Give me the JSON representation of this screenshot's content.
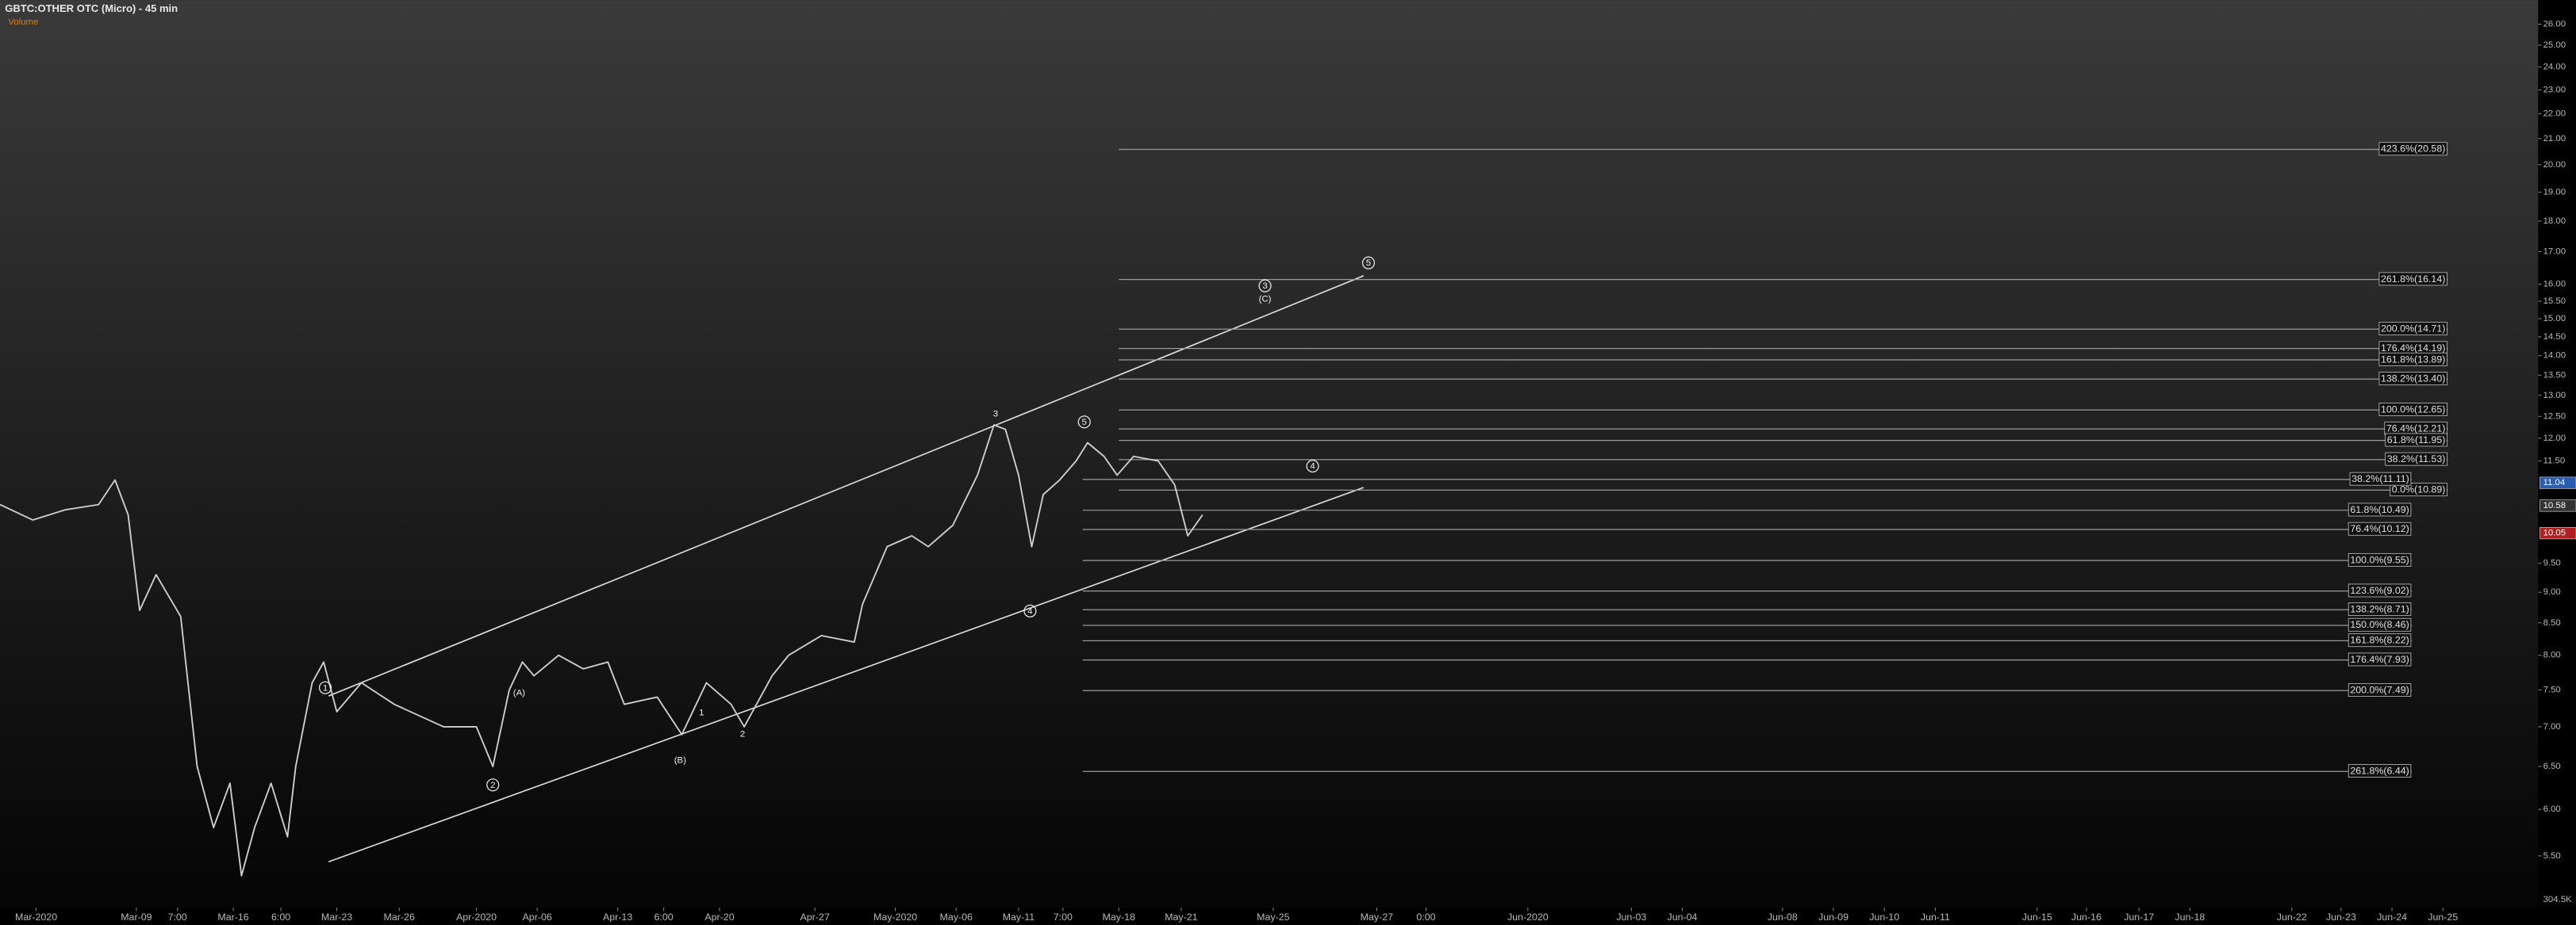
{
  "chart_data": {
    "type": "line",
    "title": "GBTC:OTHER OTC (Micro) - 45 min",
    "subtitle": "Volume",
    "volume_label": "304.5K",
    "log_scale": true,
    "xlim": [
      0,
      1545
    ],
    "ylim": [
      5.07,
      27.2
    ],
    "xticks": [
      {
        "value": 22,
        "label": "Mar-2020"
      },
      {
        "value": 83,
        "label": "Mar-09"
      },
      {
        "value": 108,
        "label": "7:00"
      },
      {
        "value": 142,
        "label": "Mar-16"
      },
      {
        "value": 171,
        "label": "6:00"
      },
      {
        "value": 205,
        "label": "Mar-23"
      },
      {
        "value": 243,
        "label": "Mar-26"
      },
      {
        "value": 290,
        "label": "Apr-2020"
      },
      {
        "value": 327,
        "label": "Apr-06"
      },
      {
        "value": 376,
        "label": "Apr-13"
      },
      {
        "value": 404,
        "label": "6:00"
      },
      {
        "value": 438,
        "label": "Apr-20"
      },
      {
        "value": 496,
        "label": "Apr-27"
      },
      {
        "value": 545,
        "label": "May-2020"
      },
      {
        "value": 582,
        "label": "May-06"
      },
      {
        "value": 620,
        "label": "May-11"
      },
      {
        "value": 647,
        "label": "7:00"
      },
      {
        "value": 681,
        "label": "May-18"
      },
      {
        "value": 719,
        "label": "May-21"
      },
      {
        "value": 775,
        "label": "May-25"
      },
      {
        "value": 838,
        "label": "May-27"
      },
      {
        "value": 868,
        "label": "0:00"
      },
      {
        "value": 930,
        "label": "Jun-2020"
      },
      {
        "value": 993,
        "label": "Jun-03"
      },
      {
        "value": 1024,
        "label": "Jun-04"
      },
      {
        "value": 1085,
        "label": "Jun-08"
      },
      {
        "value": 1116,
        "label": "Jun-09"
      },
      {
        "value": 1147,
        "label": "Jun-10"
      },
      {
        "value": 1178,
        "label": "Jun-11"
      },
      {
        "value": 1240,
        "label": "Jun-15"
      },
      {
        "value": 1270,
        "label": "Jun-16"
      },
      {
        "value": 1302,
        "label": "Jun-17"
      },
      {
        "value": 1333,
        "label": "Jun-18"
      },
      {
        "value": 1395,
        "label": "Jun-22"
      },
      {
        "value": 1425,
        "label": "Jun-23"
      },
      {
        "value": 1456,
        "label": "Jun-24"
      },
      {
        "value": 1487,
        "label": "Jun-25"
      }
    ],
    "yticks": [
      {
        "value": 26,
        "label": "26.00"
      },
      {
        "value": 25,
        "label": "25.00"
      },
      {
        "value": 24,
        "label": "24.00"
      },
      {
        "value": 23,
        "label": "23.00"
      },
      {
        "value": 22,
        "label": "22.00"
      },
      {
        "value": 21,
        "label": "21.00"
      },
      {
        "value": 20,
        "label": "20.00"
      },
      {
        "value": 19,
        "label": "19.00"
      },
      {
        "value": 18,
        "label": "18.00"
      },
      {
        "value": 17,
        "label": "17.00"
      },
      {
        "value": 16,
        "label": "16.00"
      },
      {
        "value": 15.5,
        "label": "15.50"
      },
      {
        "value": 15,
        "label": "15.00"
      },
      {
        "value": 14.5,
        "label": "14.50"
      },
      {
        "value": 14,
        "label": "14.00"
      },
      {
        "value": 13.5,
        "label": "13.50"
      },
      {
        "value": 13,
        "label": "13.00"
      },
      {
        "value": 12.5,
        "label": "12.50"
      },
      {
        "value": 12,
        "label": "12.00"
      },
      {
        "value": 11.5,
        "label": "11.50"
      },
      {
        "value": 9.5,
        "label": "9.50"
      },
      {
        "value": 9,
        "label": "9.00"
      },
      {
        "value": 8.5,
        "label": "8.50"
      },
      {
        "value": 8,
        "label": "8.00"
      },
      {
        "value": 7.5,
        "label": "7.50"
      },
      {
        "value": 7,
        "label": "7.00"
      },
      {
        "value": 6.5,
        "label": "6.50"
      },
      {
        "value": 6,
        "label": "6.00"
      },
      {
        "value": 5.5,
        "label": "5.50"
      }
    ],
    "series": [
      {
        "name": "GBTC",
        "color": "#cfcfcf",
        "x": [
          0,
          20,
          40,
          60,
          70,
          78,
          85,
          95,
          110,
          120,
          130,
          140,
          147,
          155,
          165,
          175,
          180,
          190,
          197,
          205,
          220,
          240,
          270,
          290,
          300,
          310,
          318,
          325,
          340,
          355,
          370,
          380,
          400,
          415,
          430,
          445,
          453,
          470,
          480,
          500,
          520,
          525,
          540,
          555,
          565,
          580,
          595,
          605,
          612,
          620,
          628,
          635,
          645,
          655,
          662,
          672,
          680,
          690,
          705,
          715,
          723,
          732
        ],
        "values": [
          10.6,
          10.3,
          10.5,
          10.6,
          11.1,
          10.4,
          8.7,
          9.3,
          8.6,
          6.5,
          5.8,
          6.3,
          5.3,
          5.8,
          6.3,
          5.7,
          6.5,
          7.6,
          7.9,
          7.2,
          7.6,
          7.3,
          7.0,
          7.0,
          6.5,
          7.5,
          7.9,
          7.7,
          8.0,
          7.8,
          7.9,
          7.3,
          7.4,
          6.9,
          7.6,
          7.3,
          7.0,
          7.7,
          8.0,
          8.3,
          8.2,
          8.8,
          9.8,
          10.0,
          9.8,
          10.2,
          11.2,
          12.3,
          12.2,
          11.2,
          9.8,
          10.8,
          11.1,
          11.5,
          11.9,
          11.6,
          11.2,
          11.6,
          11.5,
          11.0,
          10.0,
          10.4
        ]
      }
    ],
    "price_markers": [
      {
        "value": 11.04,
        "color": "#2a5db0"
      },
      {
        "value": 10.58,
        "color": "#333333"
      },
      {
        "value": 10.05,
        "color": "#b02020"
      }
    ],
    "fib_levels": [
      {
        "label": "423.6%(20.58)",
        "value": 20.58,
        "from": 681,
        "to": 1490
      },
      {
        "label": "261.8%(16.14)",
        "value": 16.14,
        "from": 681,
        "to": 1490
      },
      {
        "label": "200.0%(14.71)",
        "value": 14.71,
        "from": 681,
        "to": 1490
      },
      {
        "label": "176.4%(14.19)",
        "value": 14.19,
        "from": 681,
        "to": 1490
      },
      {
        "label": "161.8%(13.89)",
        "value": 13.89,
        "from": 681,
        "to": 1490
      },
      {
        "label": "138.2%(13.40)",
        "value": 13.4,
        "from": 681,
        "to": 1490
      },
      {
        "label": "100.0%(12.65)",
        "value": 12.65,
        "from": 681,
        "to": 1490
      },
      {
        "label": "76.4%(12.21)",
        "value": 12.21,
        "from": 681,
        "to": 1490
      },
      {
        "label": "61.8%(11.95)",
        "value": 11.95,
        "from": 681,
        "to": 1490
      },
      {
        "label": "38.2%(11.53)",
        "value": 11.53,
        "from": 681,
        "to": 1490
      },
      {
        "label": "0.0%(10.89)",
        "value": 10.89,
        "from": 681,
        "to": 1490
      },
      {
        "label": "38.2%(11.11)",
        "value": 11.11,
        "from": 659,
        "to": 1468
      },
      {
        "label": "61.8%(10.49)",
        "value": 10.49,
        "from": 659,
        "to": 1468
      },
      {
        "label": "76.4%(10.12)",
        "value": 10.12,
        "from": 659,
        "to": 1468
      },
      {
        "label": "100.0%(9.55)",
        "value": 9.55,
        "from": 659,
        "to": 1468
      },
      {
        "label": "123.6%(9.02)",
        "value": 9.02,
        "from": 659,
        "to": 1468
      },
      {
        "label": "138.2%(8.71)",
        "value": 8.71,
        "from": 659,
        "to": 1468
      },
      {
        "label": "150.0%(8.46)",
        "value": 8.46,
        "from": 659,
        "to": 1468
      },
      {
        "label": "161.8%(8.22)",
        "value": 8.22,
        "from": 659,
        "to": 1468
      },
      {
        "label": "176.4%(7.93)",
        "value": 7.93,
        "from": 659,
        "to": 1468
      },
      {
        "label": "200.0%(7.49)",
        "value": 7.49,
        "from": 659,
        "to": 1468
      },
      {
        "label": "261.8%(6.44)",
        "value": 6.44,
        "from": 659,
        "to": 1468
      }
    ],
    "annotations": [
      {
        "text": "1",
        "x": 198,
        "y": 7.53,
        "circled": true
      },
      {
        "text": "2",
        "x": 300,
        "y": 6.28,
        "circled": true
      },
      {
        "text": "(A)",
        "x": 316,
        "y": 7.46,
        "circled": false
      },
      {
        "text": "(B)",
        "x": 414,
        "y": 6.58,
        "circled": false
      },
      {
        "text": "1",
        "x": 427,
        "y": 7.19,
        "circled": false
      },
      {
        "text": "2",
        "x": 452,
        "y": 6.91,
        "circled": false
      },
      {
        "text": "3",
        "x": 606,
        "y": 12.56,
        "circled": false
      },
      {
        "text": "4",
        "x": 627,
        "y": 8.69,
        "circled": true
      },
      {
        "text": "5",
        "x": 660,
        "y": 12.37,
        "circled": true
      },
      {
        "text": "4",
        "x": 799,
        "y": 11.39,
        "circled": true
      },
      {
        "text": "5",
        "x": 833,
        "y": 16.65,
        "circled": true
      },
      {
        "text": "3",
        "x": 770,
        "y": 15.95,
        "circled": true
      },
      {
        "text": "(C)",
        "x": 770,
        "y": 15.57,
        "circled": false
      }
    ]
  }
}
